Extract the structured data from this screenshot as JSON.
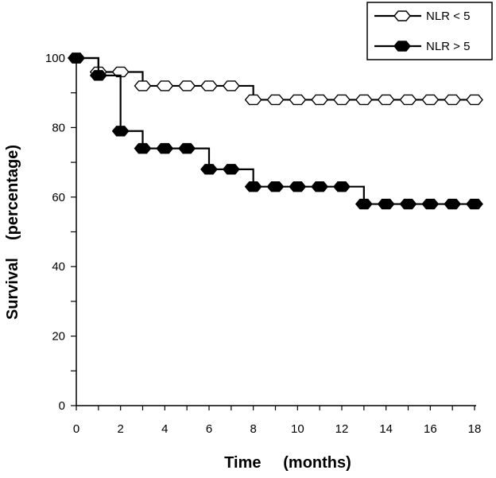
{
  "chart_data": {
    "type": "line",
    "title": "",
    "xlabel": "Time     (months)",
    "ylabel": "Survival    (percentage)",
    "xlim": [
      0,
      18
    ],
    "ylim": [
      0,
      100
    ],
    "x_ticks": [
      0,
      2,
      4,
      6,
      8,
      10,
      12,
      14,
      16,
      18
    ],
    "y_ticks": [
      0,
      20,
      40,
      60,
      80,
      100
    ],
    "grid": false,
    "legend_position": "top-right",
    "series": [
      {
        "name": "NLR < 5",
        "marker": "hollow-hexagon",
        "color": "#000000",
        "fill": "#ffffff",
        "x": [
          0,
          1,
          2,
          3,
          4,
          5,
          6,
          7,
          8,
          9,
          10,
          11,
          12,
          13,
          14,
          15,
          16,
          17,
          18
        ],
        "y": [
          100,
          96,
          96,
          92,
          92,
          92,
          92,
          92,
          88,
          88,
          88,
          88,
          88,
          88,
          88,
          88,
          88,
          88,
          88
        ]
      },
      {
        "name": "NLR > 5",
        "marker": "filled-hexagon",
        "color": "#000000",
        "fill": "#000000",
        "x": [
          0,
          1,
          2,
          3,
          4,
          5,
          6,
          7,
          8,
          9,
          10,
          11,
          12,
          13,
          14,
          15,
          16,
          17,
          18
        ],
        "y": [
          100,
          95,
          79,
          74,
          74,
          74,
          68,
          68,
          63,
          63,
          63,
          63,
          63,
          58,
          58,
          58,
          58,
          58,
          58
        ]
      }
    ]
  }
}
